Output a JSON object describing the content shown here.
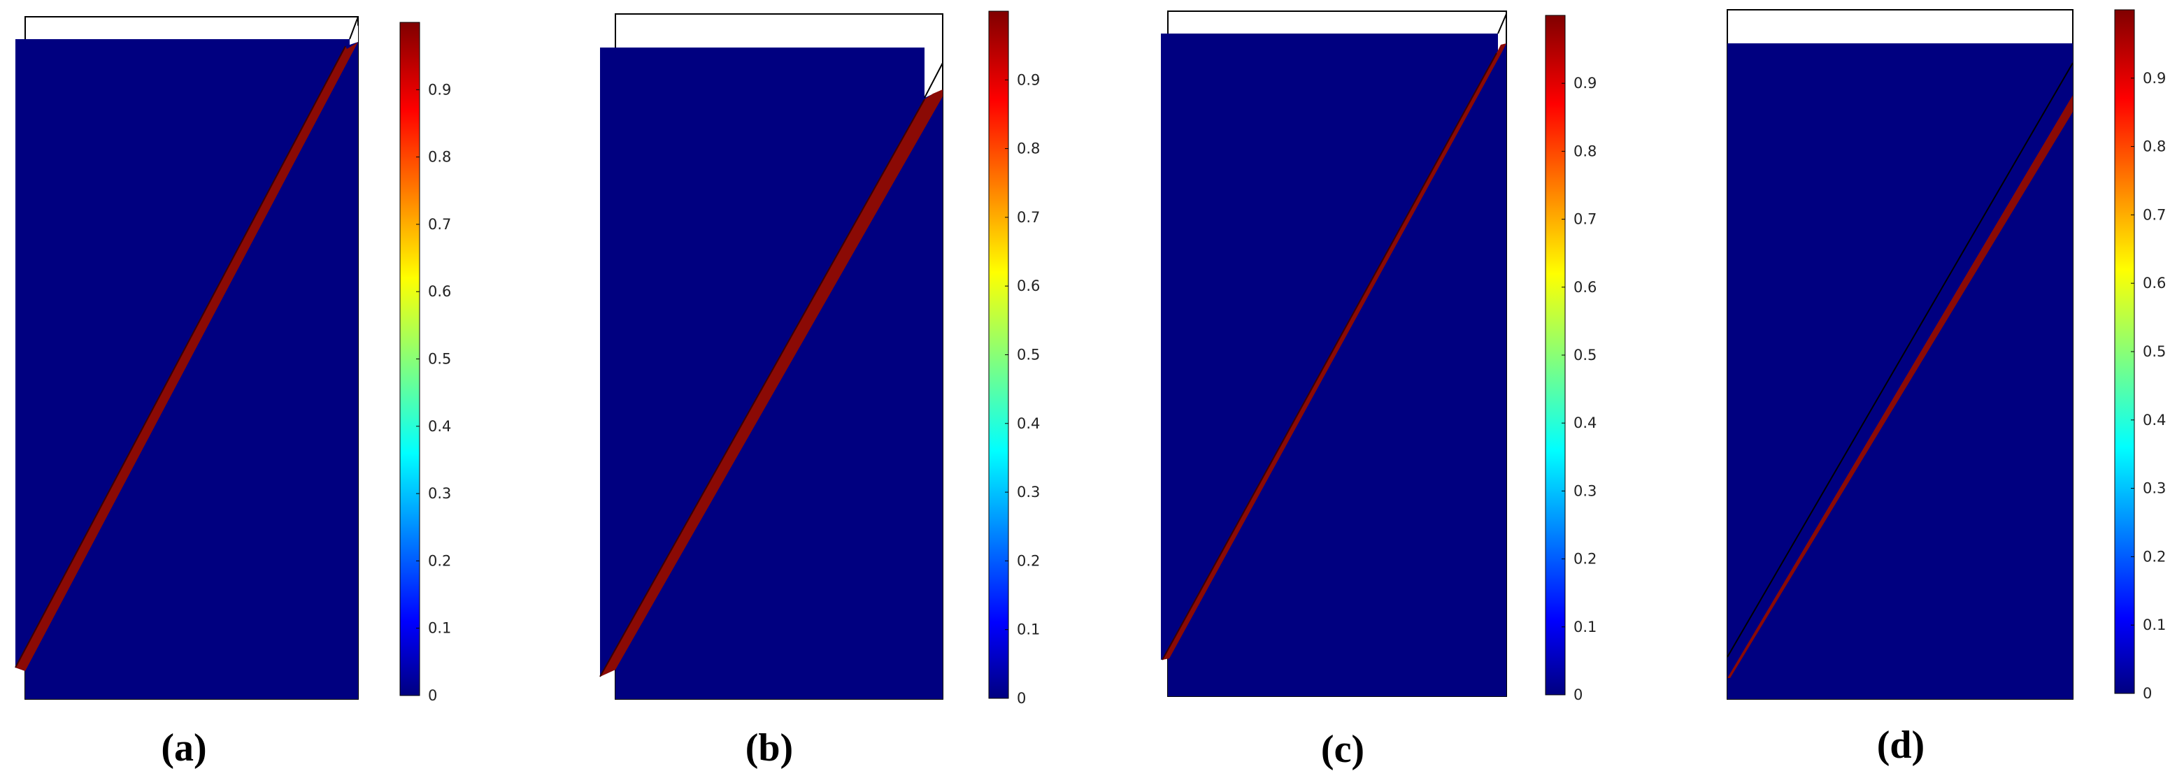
{
  "colorbar": {
    "min": 0,
    "max": 1,
    "tick_labels": [
      "0",
      "0.1",
      "0.2",
      "0.3",
      "0.4",
      "0.5",
      "0.6",
      "0.7",
      "0.8",
      "0.9"
    ],
    "colormap": "jet",
    "stops": [
      "#000080",
      "#0000ff",
      "#00ffff",
      "#ffff00",
      "#ff0000",
      "#800000"
    ]
  },
  "colors": {
    "field_low": "#000080",
    "band_high": "#8b0a05",
    "outline": "#000000",
    "background": "#ffffff"
  },
  "panels": [
    {
      "id": "a",
      "caption": "(a)"
    },
    {
      "id": "b",
      "caption": "(b)"
    },
    {
      "id": "c",
      "caption": "(c)"
    },
    {
      "id": "d",
      "caption": "(d)"
    }
  ]
}
